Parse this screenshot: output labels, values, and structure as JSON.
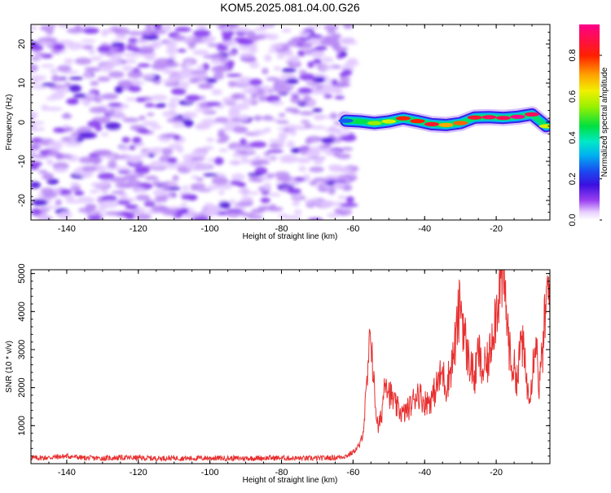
{
  "page": {
    "title": "KOM5.2025.081.04.00.G26"
  },
  "chart_data": [
    {
      "id": "spectrogram",
      "type": "heatmap",
      "xlabel": "Height of straight line (km)",
      "ylabel": "Frequency (Hz)",
      "xlim": [
        -150,
        -5
      ],
      "ylim": [
        -25,
        25
      ],
      "xticks": [
        -140,
        -120,
        -100,
        -80,
        -60,
        -40,
        -20
      ],
      "yticks": [
        -20,
        -10,
        0,
        10,
        20
      ],
      "colorbar": {
        "label": "Normalized spectral amplitude",
        "range": [
          0,
          0.95
        ],
        "ticks": [
          0.0,
          0.2,
          0.4,
          0.6,
          0.8
        ],
        "colors": [
          "#ffffff",
          "#9a40f0",
          "#3a10e0",
          "#1a4af0",
          "#00d8f0",
          "#00e040",
          "#c8f000",
          "#ffa500",
          "#ff0000",
          "#ff008a"
        ]
      },
      "noise_region_x": [
        -150,
        -60
      ],
      "signal_trace": {
        "x": [
          -62,
          -58,
          -54,
          -50,
          -46,
          -42,
          -38,
          -34,
          -30,
          -26,
          -22,
          -18,
          -14,
          -10,
          -6
        ],
        "frequency": [
          0.4,
          0.2,
          -0.2,
          0.2,
          1.0,
          0.3,
          -0.5,
          -0.7,
          -0.2,
          1.2,
          1.3,
          1.1,
          1.4,
          2.0,
          -1.0
        ],
        "amplitude": [
          0.25,
          0.45,
          0.55,
          0.6,
          0.8,
          0.8,
          0.85,
          0.7,
          0.75,
          0.85,
          0.9,
          0.9,
          0.95,
          0.9,
          0.6
        ]
      }
    },
    {
      "id": "snr",
      "type": "line",
      "xlabel": "Height of straight line (km)",
      "ylabel": "SNR (10 * v/v)",
      "xlim": [
        -150,
        -5
      ],
      "ylim": [
        0,
        5100
      ],
      "xticks": [
        -140,
        -120,
        -100,
        -80,
        -60,
        -40,
        -20
      ],
      "yticks": [
        1000,
        2000,
        3000,
        4000,
        5000
      ],
      "color": "#e83030",
      "x": [
        -150,
        -145,
        -140,
        -135,
        -130,
        -125,
        -120,
        -115,
        -110,
        -105,
        -100,
        -95,
        -90,
        -85,
        -80,
        -75,
        -70,
        -65,
        -62,
        -60,
        -58,
        -57,
        -56,
        -55,
        -54,
        -53,
        -52,
        -51,
        -50,
        -48,
        -46,
        -44,
        -42,
        -40,
        -38,
        -36,
        -35,
        -34,
        -32,
        -31,
        -30,
        -29,
        -28,
        -27,
        -26,
        -25,
        -24,
        -22,
        -21,
        -20,
        -19,
        -18,
        -17,
        -16,
        -15,
        -14,
        -13,
        -12,
        -11,
        -10,
        -9,
        -8,
        -7,
        -6,
        -5
      ],
      "y": [
        150,
        160,
        200,
        150,
        140,
        160,
        150,
        140,
        150,
        140,
        150,
        140,
        140,
        150,
        150,
        140,
        140,
        160,
        200,
        300,
        500,
        1000,
        2200,
        3500,
        1800,
        900,
        1300,
        2400,
        1900,
        1500,
        1300,
        1500,
        1900,
        1600,
        1700,
        2200,
        2400,
        2000,
        2800,
        3500,
        4300,
        3500,
        2800,
        2600,
        2200,
        3000,
        2400,
        2700,
        3600,
        4000,
        4800,
        5000,
        3800,
        2700,
        2500,
        2200,
        3400,
        2600,
        1800,
        2300,
        3500,
        2000,
        3000,
        4300,
        4600
      ]
    }
  ]
}
